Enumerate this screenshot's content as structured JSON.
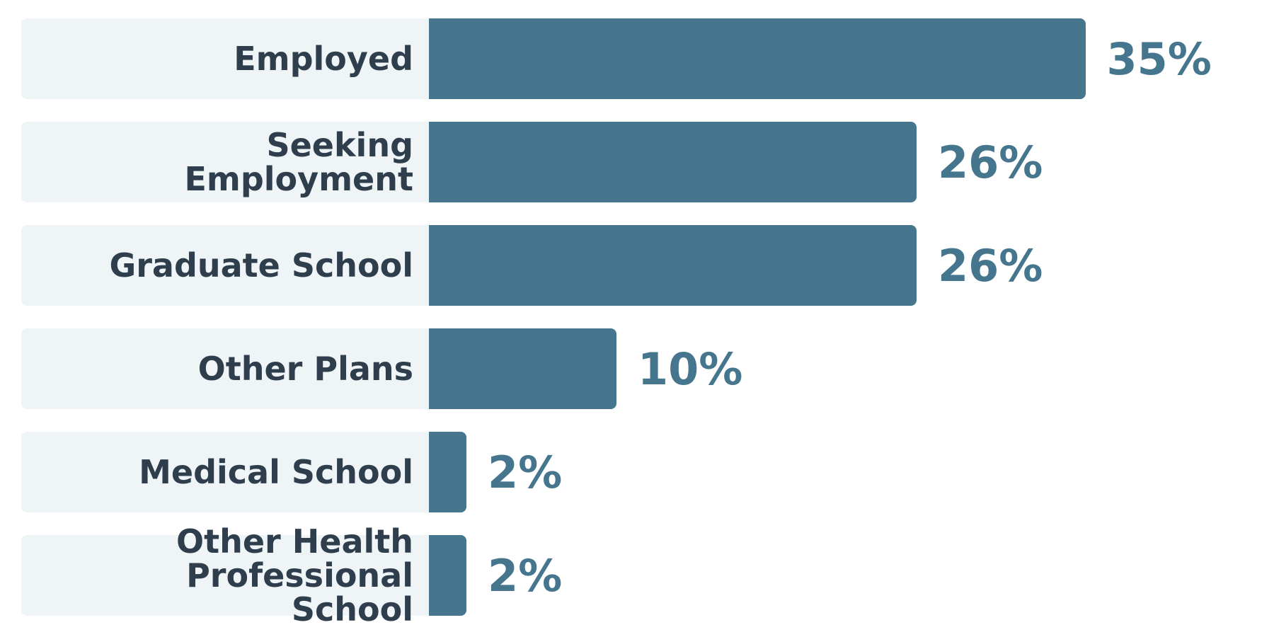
{
  "chart_data": {
    "type": "bar",
    "orientation": "horizontal",
    "categories": [
      "Employed",
      "Seeking Employment",
      "Graduate School",
      "Other Plans",
      "Medical School",
      "Other Health Professional School"
    ],
    "values": [
      35,
      26,
      26,
      10,
      2,
      2
    ],
    "value_labels": [
      "35%",
      "26%",
      "26%",
      "10%",
      "2%",
      "2%"
    ],
    "color": "#46768e"
  }
}
